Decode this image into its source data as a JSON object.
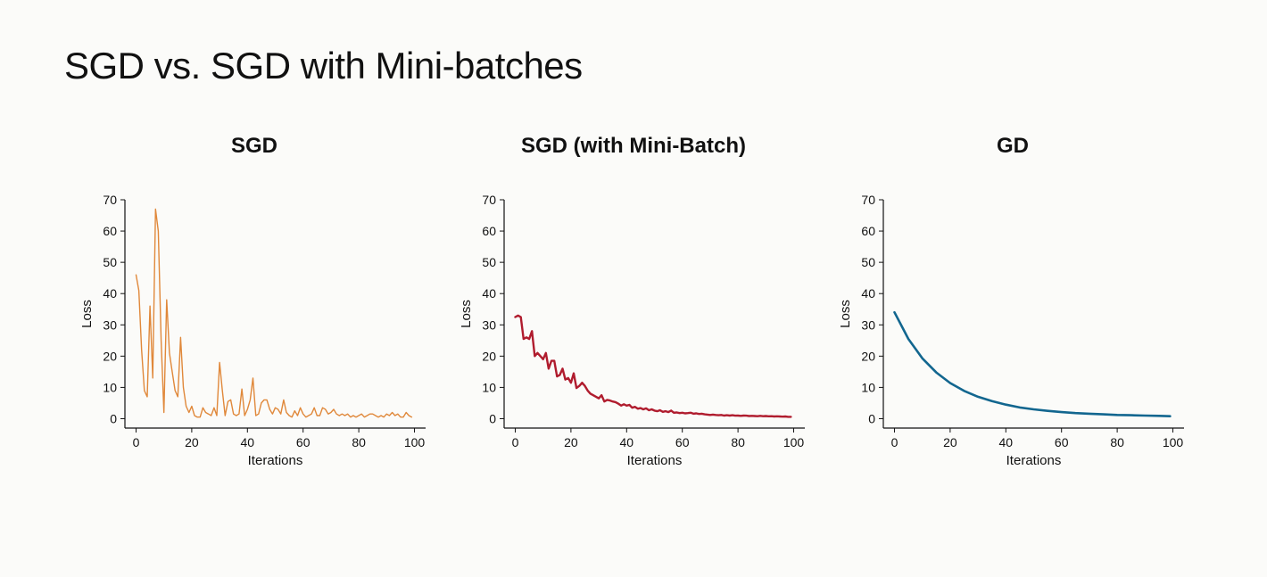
{
  "slide": {
    "title": "SGD vs. SGD with Mini-batches"
  },
  "chart_data": [
    {
      "type": "line",
      "title": "SGD",
      "xlabel": "Iterations",
      "ylabel": "Loss",
      "xlim": [
        -4,
        104
      ],
      "ylim": [
        -3,
        70
      ],
      "xticks": [
        0,
        20,
        40,
        60,
        80,
        100
      ],
      "yticks": [
        0,
        10,
        20,
        30,
        40,
        50,
        60,
        70
      ],
      "grid": false,
      "color": "#e0883a",
      "line_width": 1.4,
      "series": [
        {
          "x": [
            0,
            1,
            2,
            3,
            4,
            5,
            6,
            7,
            8,
            9,
            10,
            11,
            12,
            13,
            14,
            15,
            16,
            17,
            18,
            19,
            20,
            21,
            22,
            23,
            24,
            25,
            26,
            27,
            28,
            29,
            30,
            31,
            32,
            33,
            34,
            35,
            36,
            37,
            38,
            39,
            40,
            41,
            42,
            43,
            44,
            45,
            46,
            47,
            48,
            49,
            50,
            51,
            52,
            53,
            54,
            55,
            56,
            57,
            58,
            59,
            60,
            61,
            62,
            63,
            64,
            65,
            66,
            67,
            68,
            69,
            70,
            71,
            72,
            73,
            74,
            75,
            76,
            77,
            78,
            79,
            80,
            81,
            82,
            83,
            84,
            85,
            86,
            87,
            88,
            89,
            90,
            91,
            92,
            93,
            94,
            95,
            96,
            97,
            98,
            99
          ],
          "y": [
            46,
            41,
            22,
            9,
            7,
            36,
            13,
            67,
            60,
            25,
            2,
            38,
            21,
            15,
            9,
            7,
            26,
            10,
            4,
            2,
            4,
            1,
            0.5,
            0.5,
            3.5,
            2,
            1.5,
            1,
            3.5,
            1,
            18,
            9,
            1,
            5.5,
            6,
            1.5,
            1,
            1.5,
            9.5,
            1,
            3,
            6,
            13,
            1,
            1.5,
            5,
            6,
            6,
            3,
            1.5,
            3.5,
            3,
            1.5,
            6,
            2,
            1,
            0.5,
            2.5,
            1,
            3.5,
            1.5,
            0.5,
            1,
            1.5,
            3.5,
            1,
            1,
            3.5,
            3,
            1.5,
            2,
            3,
            1.5,
            1,
            1.5,
            1,
            1.5,
            0.5,
            1,
            0.5,
            1,
            1.5,
            0.5,
            1,
            1.5,
            1.5,
            1,
            0.5,
            1,
            0.5,
            1.5,
            1,
            2,
            1,
            1.5,
            0.5,
            0.5,
            2,
            1,
            0.5
          ]
        }
      ]
    },
    {
      "type": "line",
      "title": "SGD (with Mini-Batch)",
      "xlabel": "Iterations",
      "ylabel": "Loss",
      "xlim": [
        -4,
        104
      ],
      "ylim": [
        -3,
        70
      ],
      "xticks": [
        0,
        20,
        40,
        60,
        80,
        100
      ],
      "yticks": [
        0,
        10,
        20,
        30,
        40,
        50,
        60,
        70
      ],
      "grid": false,
      "color": "#b01c2e",
      "line_width": 2.4,
      "series": [
        {
          "x": [
            0,
            1,
            2,
            3,
            4,
            5,
            6,
            7,
            8,
            9,
            10,
            11,
            12,
            13,
            14,
            15,
            16,
            17,
            18,
            19,
            20,
            21,
            22,
            23,
            24,
            25,
            26,
            27,
            28,
            29,
            30,
            31,
            32,
            33,
            34,
            35,
            36,
            37,
            38,
            39,
            40,
            41,
            42,
            43,
            44,
            45,
            46,
            47,
            48,
            49,
            50,
            51,
            52,
            53,
            54,
            55,
            56,
            57,
            58,
            59,
            60,
            61,
            62,
            63,
            64,
            65,
            66,
            67,
            68,
            69,
            70,
            71,
            72,
            73,
            74,
            75,
            76,
            77,
            78,
            79,
            80,
            81,
            82,
            83,
            84,
            85,
            86,
            87,
            88,
            89,
            90,
            91,
            92,
            93,
            94,
            95,
            96,
            97,
            98,
            99
          ],
          "y": [
            32.5,
            33,
            32.5,
            25.5,
            26,
            25.5,
            28,
            20,
            21,
            20,
            19,
            21,
            16,
            18.5,
            18.5,
            13.5,
            14,
            16,
            12.5,
            13,
            11.5,
            14.5,
            9.8,
            10.5,
            11.5,
            10.5,
            9,
            8,
            7.5,
            7,
            6.5,
            7.5,
            5.5,
            6,
            5.8,
            5.5,
            5.3,
            4.8,
            4.2,
            4.6,
            4.2,
            4.4,
            3.5,
            3.8,
            3.2,
            3.4,
            3.0,
            3.3,
            2.7,
            3.0,
            2.6,
            2.4,
            2.7,
            2.2,
            2.4,
            2.1,
            2.6,
            1.9,
            2.0,
            1.8,
            1.9,
            1.7,
            1.8,
            1.9,
            1.6,
            1.7,
            1.5,
            1.6,
            1.4,
            1.3,
            1.2,
            1.3,
            1.2,
            1.1,
            1.2,
            1.0,
            1.1,
            1.0,
            1.1,
            0.95,
            1.0,
            0.9,
            1.0,
            0.95,
            0.85,
            0.9,
            0.85,
            0.8,
            0.9,
            0.8,
            0.85,
            0.75,
            0.8,
            0.7,
            0.75,
            0.7,
            0.65,
            0.7,
            0.6,
            0.6
          ]
        }
      ]
    },
    {
      "type": "line",
      "title": "GD",
      "xlabel": "Iterations",
      "ylabel": "Loss",
      "xlim": [
        -4,
        104
      ],
      "ylim": [
        -3,
        70
      ],
      "xticks": [
        0,
        20,
        40,
        60,
        80,
        100
      ],
      "yticks": [
        0,
        10,
        20,
        30,
        40,
        50,
        60,
        70
      ],
      "grid": false,
      "color": "#12668f",
      "line_width": 2.6,
      "series": [
        {
          "x": [
            0,
            5,
            10,
            15,
            20,
            25,
            30,
            35,
            40,
            45,
            50,
            55,
            60,
            65,
            70,
            75,
            80,
            85,
            90,
            95,
            99
          ],
          "y": [
            34,
            25.5,
            19.3,
            14.8,
            11.4,
            8.9,
            7.0,
            5.6,
            4.5,
            3.6,
            3.0,
            2.5,
            2.1,
            1.8,
            1.6,
            1.4,
            1.2,
            1.1,
            1.0,
            0.9,
            0.8
          ]
        }
      ]
    }
  ]
}
